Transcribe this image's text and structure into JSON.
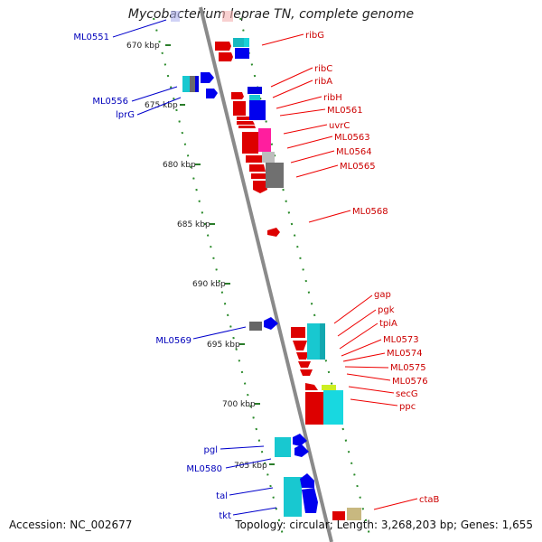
{
  "title": "Mycobacterium leprae TN, complete genome",
  "accession_text": "Accession: NC_002677",
  "topology_text": "Topology: circular; Length: 3,268,203 bp; Genes: 1,655",
  "colors": {
    "label_right": "#cc0000",
    "label_left": "#0000bb",
    "backbone": "#888888",
    "tick": "#2a7d2a"
  },
  "ruler_labels": [
    {
      "text": "670 kbp"
    },
    {
      "text": "675 kbp"
    },
    {
      "text": "680 kbp"
    },
    {
      "text": "685 kbp"
    },
    {
      "text": "690 kbp"
    },
    {
      "text": "695 kbp"
    },
    {
      "text": "700 kbp"
    },
    {
      "text": "705 kbp"
    }
  ],
  "gene_labels_right": [
    {
      "text": "ribG"
    },
    {
      "text": "ribC"
    },
    {
      "text": "ribA"
    },
    {
      "text": "ribH"
    },
    {
      "text": "ML0561"
    },
    {
      "text": "uvrC"
    },
    {
      "text": "ML0563"
    },
    {
      "text": "ML0564"
    },
    {
      "text": "ML0565"
    },
    {
      "text": "ML0568"
    },
    {
      "text": "gap"
    },
    {
      "text": "pgk"
    },
    {
      "text": "tpiA"
    },
    {
      "text": "ML0573"
    },
    {
      "text": "ML0574"
    },
    {
      "text": "ML0575"
    },
    {
      "text": "ML0576"
    },
    {
      "text": "secG"
    },
    {
      "text": "ppc"
    },
    {
      "text": "ctaB"
    }
  ],
  "gene_labels_left": [
    {
      "text": "ML0551"
    },
    {
      "text": "ML0556"
    },
    {
      "text": "lprG"
    },
    {
      "text": "ML0569"
    },
    {
      "text": "pgl"
    },
    {
      "text": "ML0580"
    },
    {
      "text": "tal"
    },
    {
      "text": "tkt"
    }
  ]
}
